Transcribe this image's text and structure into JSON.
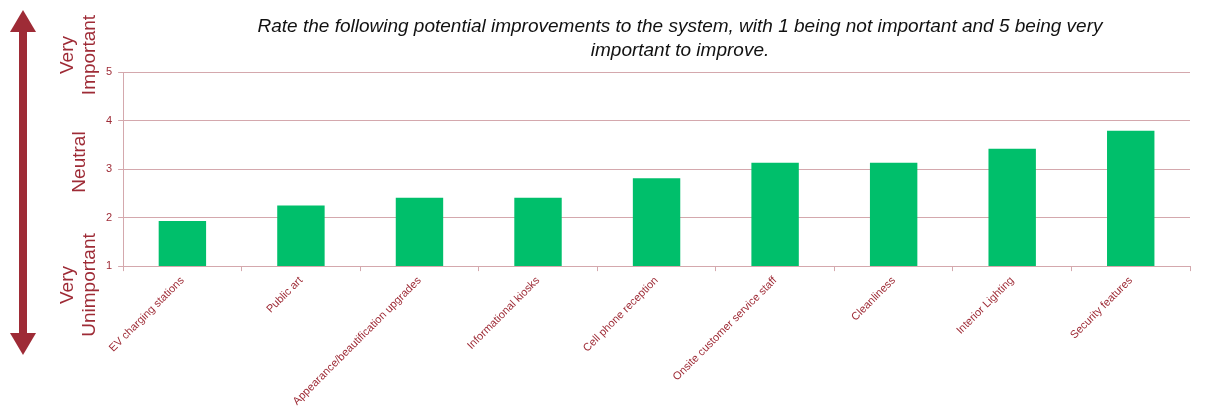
{
  "chart_data": {
    "type": "bar",
    "title": "Rate the following potential improvements to the system, with 1 being not important and 5 being very important to improve.",
    "categories": [
      "EV charging stations",
      "Public art",
      "Appearance/beautification upgrades",
      "Informational kiosks",
      "Cell phone reception",
      "Onsite customer service staff",
      "Cleanliness",
      "Interior Lighting",
      "Security features"
    ],
    "values": [
      1.93,
      2.25,
      2.41,
      2.41,
      2.81,
      3.13,
      3.13,
      3.42,
      3.79
    ],
    "color": "#00bf6b",
    "ylim": [
      1,
      5
    ],
    "yticks": [
      1,
      2,
      3,
      4,
      5
    ],
    "grid": "y",
    "legend": false,
    "annotations": [
      "Very Important",
      "Neutral",
      "Very Unimportant"
    ]
  }
}
